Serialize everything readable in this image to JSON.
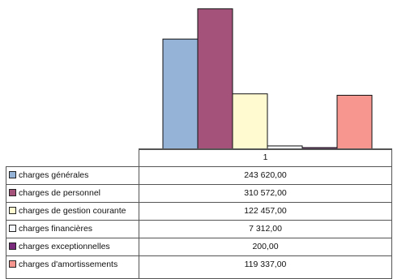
{
  "chart_data": {
    "type": "bar",
    "categories": [
      "1"
    ],
    "ylim": [
      0,
      330000
    ],
    "series": [
      {
        "name": "charges générales",
        "value": 243620.0,
        "value_label": "243 620,00",
        "color": "#95b3d7"
      },
      {
        "name": "charges de personnel",
        "value": 310572.0,
        "value_label": "310 572,00",
        "color": "#a4527a"
      },
      {
        "name": "charges de gestion courante",
        "value": 122457.0,
        "value_label": "122 457,00",
        "color": "#fffad0"
      },
      {
        "name": "charges financières",
        "value": 7312.0,
        "value_label": "7 312,00",
        "color": "#f4f7fb"
      },
      {
        "name": "charges exceptionnelles",
        "value": 200.0,
        "value_label": "200,00",
        "color": "#7b2b7b"
      },
      {
        "name": "charges d'amortissements",
        "value": 119337.0,
        "value_label": "119 337,00",
        "color": "#f7968e"
      }
    ],
    "grid": false,
    "legend": "data-table-left"
  }
}
